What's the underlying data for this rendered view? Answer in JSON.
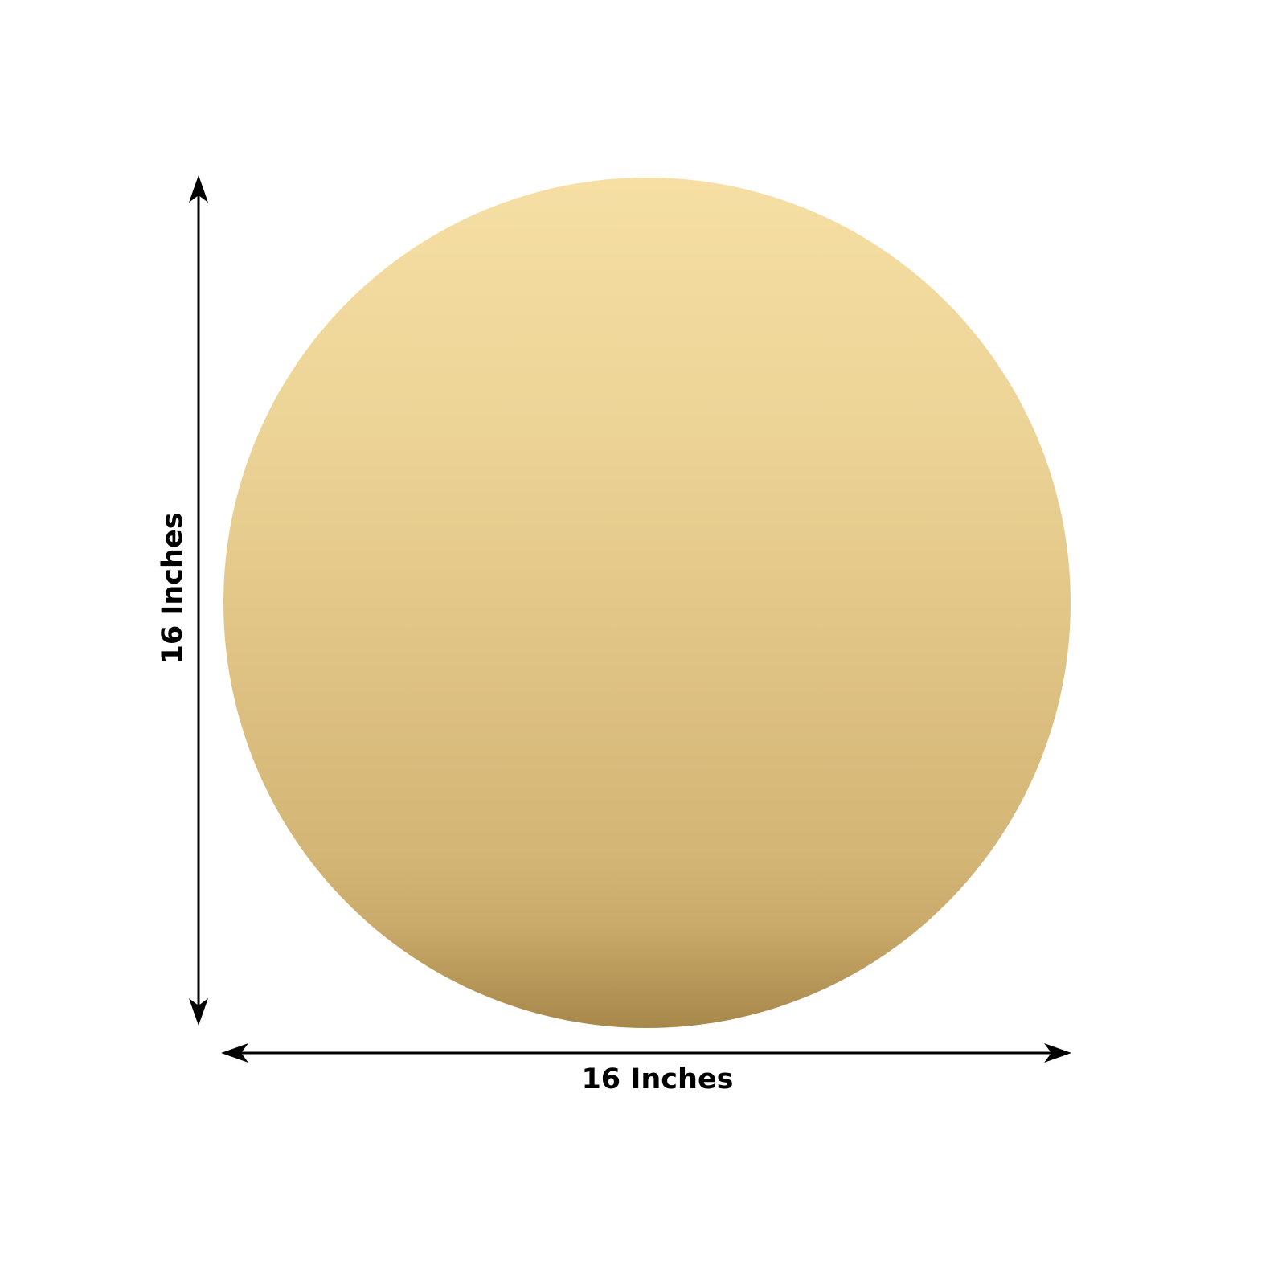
{
  "product": {
    "shape": "circle",
    "fill_gradient": [
      "#f6dfa4",
      "#ecd396",
      "#e0c485",
      "#d3b575",
      "#c9aa6a",
      "#a7884b"
    ]
  },
  "dimensions": {
    "height_label": "16 Inches",
    "width_label": "16 Inches",
    "arrow_color": "#000000"
  }
}
